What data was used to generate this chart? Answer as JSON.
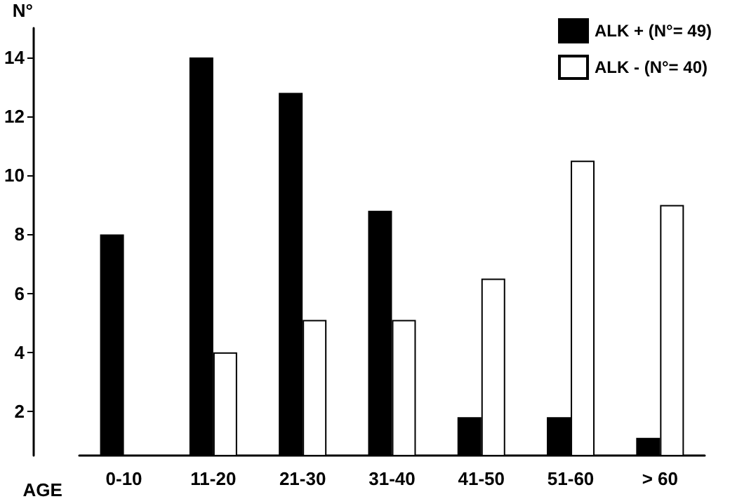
{
  "chart_data": {
    "type": "bar",
    "xlabel": "AGE",
    "ylabel": "N°",
    "categories": [
      "0-10",
      "11-20",
      "21-30",
      "31-40",
      "41-50",
      "51-60",
      "> 60"
    ],
    "series": [
      {
        "name": "ALK + (N°= 49)",
        "color": "#000000",
        "values": [
          8,
          14,
          12.8,
          8.8,
          1.8,
          1.8,
          1.1
        ]
      },
      {
        "name": "ALK - (N°= 40)",
        "color": "#ffffff",
        "values": [
          null,
          4,
          5.1,
          5.1,
          6.5,
          10.5,
          9
        ]
      }
    ],
    "ylim": [
      0.5,
      15
    ],
    "yticks": [
      2,
      4,
      6,
      8,
      10,
      12,
      14
    ],
    "grid": false,
    "legend": "top right"
  }
}
